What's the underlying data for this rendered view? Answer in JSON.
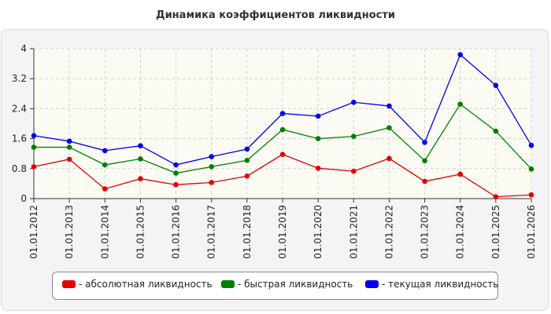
{
  "chart_data": {
    "type": "line",
    "title": "Динамика коэффициентов ликвидности",
    "xlabel": "",
    "ylabel": "",
    "categories": [
      "01.01.2012",
      "01.01.2013",
      "01.01.2014",
      "01.01.2015",
      "01.01.2016",
      "01.01.2017",
      "01.01.2018",
      "01.01.2019",
      "01.01.2020",
      "01.01.2021",
      "01.01.2022",
      "01.01.2023",
      "01.01.2024",
      "01.01.2025",
      "01.01.2026"
    ],
    "ylim": [
      0,
      4
    ],
    "yticks": [
      "0",
      "0.8",
      "1.6",
      "2.4",
      "3.2",
      "4"
    ],
    "grid": true,
    "legend_position": "bottom",
    "series": [
      {
        "name": "- абсолютная ликвидность",
        "color": "#e00000",
        "values": [
          0.85,
          1.05,
          0.26,
          0.53,
          0.37,
          0.43,
          0.6,
          1.18,
          0.81,
          0.73,
          1.07,
          0.46,
          0.65,
          0.05,
          0.1
        ]
      },
      {
        "name": "- быстрая ликвидность",
        "color": "#008000",
        "values": [
          1.37,
          1.37,
          0.9,
          1.06,
          0.68,
          0.85,
          1.02,
          1.84,
          1.6,
          1.66,
          1.89,
          1.01,
          2.52,
          1.8,
          0.79
        ]
      },
      {
        "name": "- текущая ликвидность",
        "color": "#0000ee",
        "values": [
          1.68,
          1.53,
          1.28,
          1.41,
          0.9,
          1.12,
          1.32,
          2.27,
          2.2,
          2.57,
          2.47,
          1.5,
          3.84,
          3.02,
          1.42
        ]
      }
    ],
    "marker_color": "#e00000"
  }
}
